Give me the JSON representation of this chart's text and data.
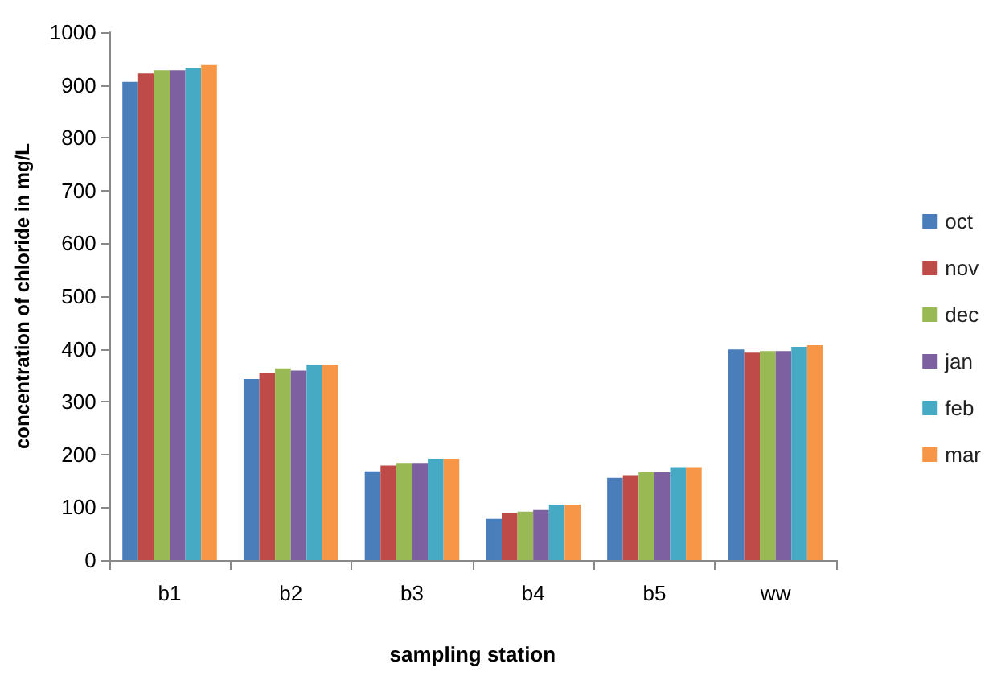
{
  "chart_data": {
    "type": "bar",
    "xlabel": "sampling station",
    "ylabel": "concentration of chloride in mg/L",
    "categories": [
      "b1",
      "b2",
      "b3",
      "b4",
      "b5",
      "ww"
    ],
    "series": [
      {
        "name": "oct",
        "color": "#4a7ebb",
        "values": [
          906,
          343,
          168,
          78,
          156,
          399
        ]
      },
      {
        "name": "nov",
        "color": "#be4b48",
        "values": [
          922,
          354,
          179,
          89,
          161,
          393
        ]
      },
      {
        "name": "dec",
        "color": "#98b954",
        "values": [
          928,
          363,
          184,
          92,
          166,
          396
        ]
      },
      {
        "name": "jan",
        "color": "#7d60a0",
        "values": [
          928,
          359,
          184,
          95,
          166,
          396
        ]
      },
      {
        "name": "feb",
        "color": "#46aac5",
        "values": [
          932,
          370,
          192,
          105,
          176,
          404
        ]
      },
      {
        "name": "mar",
        "color": "#f79646",
        "values": [
          938,
          370,
          192,
          105,
          176,
          407
        ]
      }
    ],
    "ylim": [
      0,
      1000
    ],
    "yticks": [
      0,
      100,
      200,
      300,
      400,
      500,
      600,
      700,
      800,
      900,
      1000
    ],
    "grid": false,
    "legend": "right"
  }
}
